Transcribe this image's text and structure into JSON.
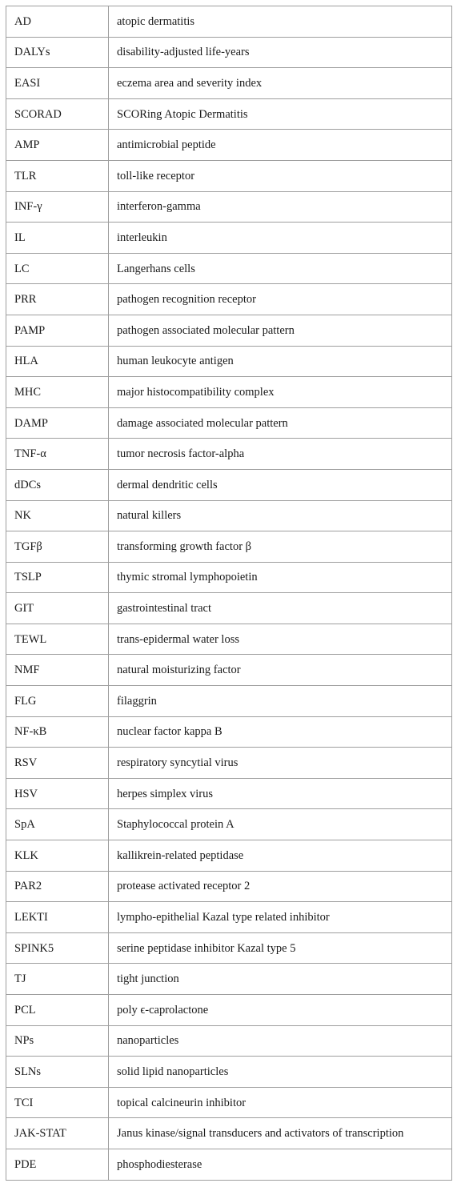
{
  "abbreviations": [
    {
      "abbr": "AD",
      "definition": "atopic dermatitis"
    },
    {
      "abbr": "DALYs",
      "definition": "disability-adjusted life-years"
    },
    {
      "abbr": "EASI",
      "definition": "eczema area and severity index"
    },
    {
      "abbr": "SCORAD",
      "definition": "SCORing Atopic Dermatitis"
    },
    {
      "abbr": "AMP",
      "definition": "antimicrobial peptide"
    },
    {
      "abbr": "TLR",
      "definition": "toll-like receptor"
    },
    {
      "abbr": "INF-γ",
      "definition": "interferon-gamma"
    },
    {
      "abbr": "IL",
      "definition": "interleukin"
    },
    {
      "abbr": "LC",
      "definition": "Langerhans cells"
    },
    {
      "abbr": "PRR",
      "definition": "pathogen recognition receptor"
    },
    {
      "abbr": "PAMP",
      "definition": "pathogen associated molecular pattern"
    },
    {
      "abbr": "HLA",
      "definition": "human leukocyte antigen"
    },
    {
      "abbr": "MHC",
      "definition": "major histocompatibility complex"
    },
    {
      "abbr": "DAMP",
      "definition": "damage associated molecular pattern"
    },
    {
      "abbr": "TNF-α",
      "definition": "tumor necrosis factor-alpha"
    },
    {
      "abbr": "dDCs",
      "definition": "dermal dendritic cells"
    },
    {
      "abbr": "NK",
      "definition": "natural killers"
    },
    {
      "abbr": "TGFβ",
      "definition": "transforming growth factor β"
    },
    {
      "abbr": "TSLP",
      "definition": "thymic stromal lymphopoietin"
    },
    {
      "abbr": "GIT",
      "definition": "gastrointestinal tract"
    },
    {
      "abbr": "TEWL",
      "definition": "trans-epidermal water loss"
    },
    {
      "abbr": "NMF",
      "definition": "natural moisturizing factor"
    },
    {
      "abbr": "FLG",
      "definition": "filaggrin"
    },
    {
      "abbr": "NF-κB",
      "definition": "nuclear factor kappa B"
    },
    {
      "abbr": "RSV",
      "definition": "respiratory syncytial virus"
    },
    {
      "abbr": "HSV",
      "definition": "herpes simplex virus"
    },
    {
      "abbr": "SpA",
      "definition": "Staphylococcal protein A"
    },
    {
      "abbr": "KLK",
      "definition": "kallikrein-related peptidase"
    },
    {
      "abbr": "PAR2",
      "definition": "protease activated receptor 2"
    },
    {
      "abbr": "LEKTI",
      "definition": "lympho-epithelial Kazal type related inhibitor"
    },
    {
      "abbr": "SPINK5",
      "definition": "serine peptidase inhibitor Kazal type 5"
    },
    {
      "abbr": "TJ",
      "definition": "tight junction"
    },
    {
      "abbr": "PCL",
      "definition": "poly ϵ-caprolactone"
    },
    {
      "abbr": "NPs",
      "definition": "nanoparticles"
    },
    {
      "abbr": "SLNs",
      "definition": "solid lipid nanoparticles"
    },
    {
      "abbr": "TCI",
      "definition": "topical calcineurin inhibitor"
    },
    {
      "abbr": "JAK-STAT",
      "definition": "Janus kinase/signal transducers and activators of transcription"
    },
    {
      "abbr": "PDE",
      "definition": "phosphodiesterase"
    }
  ]
}
